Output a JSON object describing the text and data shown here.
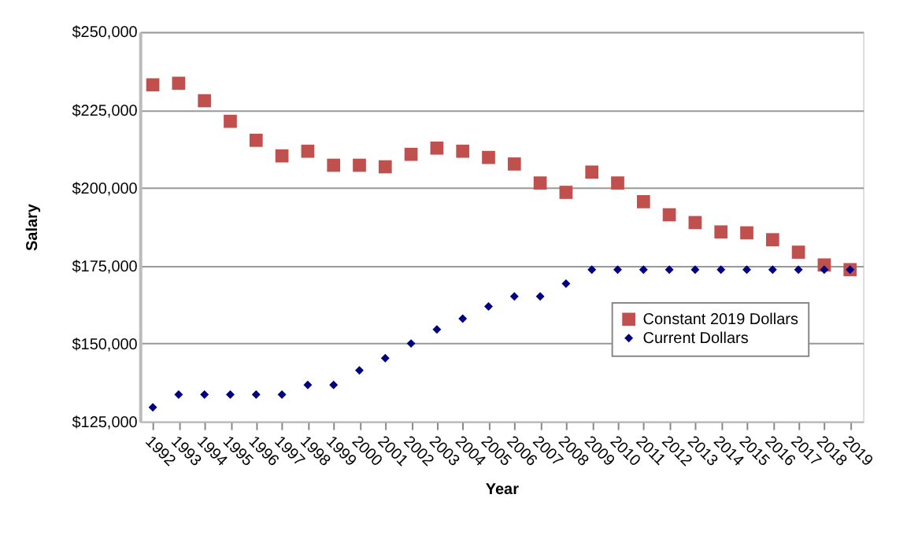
{
  "chart_data": {
    "type": "scatter",
    "xlabel": "Year",
    "ylabel": "Salary",
    "categories": [
      "1992",
      "1993",
      "1994",
      "1995",
      "1996",
      "1997",
      "1998",
      "1999",
      "2000",
      "2001",
      "2002",
      "2003",
      "2004",
      "2005",
      "2006",
      "2007",
      "2008",
      "2009",
      "2010",
      "2011",
      "2012",
      "2013",
      "2014",
      "2015",
      "2016",
      "2017",
      "2018",
      "2019"
    ],
    "series": [
      {
        "name": "Constant 2019 Dollars",
        "color": "#c0504d",
        "marker": "square",
        "values": [
          233000,
          233500,
          227900,
          221300,
          215200,
          210200,
          211700,
          207200,
          207200,
          206700,
          210700,
          212700,
          211700,
          209700,
          207600,
          201500,
          198500,
          205000,
          201500,
          195500,
          191300,
          188800,
          185800,
          185500,
          183300,
          179300,
          175200,
          173700
        ]
      },
      {
        "name": "Current Dollars",
        "color": "#000080",
        "marker": "diamond",
        "values": [
          129500,
          133600,
          133600,
          133600,
          133600,
          133600,
          136700,
          136700,
          141400,
          145300,
          150000,
          154500,
          158000,
          161900,
          165100,
          165100,
          169200,
          173700,
          173700,
          173700,
          173700,
          173700,
          173700,
          173700,
          173700,
          173700,
          173700,
          173700
        ]
      }
    ],
    "ylim": [
      125000,
      250000
    ],
    "yticks": [
      {
        "value": 125000,
        "label": "$125,000"
      },
      {
        "value": 150000,
        "label": "$150,000"
      },
      {
        "value": 175000,
        "label": "$175,000"
      },
      {
        "value": 200000,
        "label": "$200,000"
      },
      {
        "value": 225000,
        "label": "$225,000"
      },
      {
        "value": 250000,
        "label": "$250,000"
      }
    ],
    "grid": "y",
    "legend": "right"
  }
}
